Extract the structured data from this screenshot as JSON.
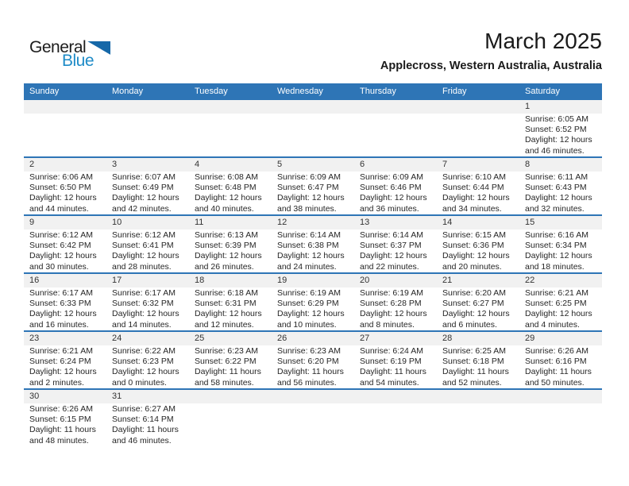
{
  "logo": {
    "part1": "General",
    "part2": "Blue"
  },
  "title": "March 2025",
  "subtitle": "Applecross, Western Australia, Australia",
  "weekdays": [
    "Sunday",
    "Monday",
    "Tuesday",
    "Wednesday",
    "Thursday",
    "Friday",
    "Saturday"
  ],
  "colors": {
    "header_bg": "#2E75B6",
    "separator": "#2E75B6",
    "band_bg": "#F1F1F1",
    "logo_triangle": "#1668A8",
    "logo_text_blue": "#1E8BC7"
  },
  "weeks": [
    [
      null,
      null,
      null,
      null,
      null,
      null,
      {
        "day": "1",
        "sunrise": "Sunrise: 6:05 AM",
        "sunset": "Sunset: 6:52 PM",
        "daylight1": "Daylight: 12 hours",
        "daylight2": "and 46 minutes."
      }
    ],
    [
      {
        "day": "2",
        "sunrise": "Sunrise: 6:06 AM",
        "sunset": "Sunset: 6:50 PM",
        "daylight1": "Daylight: 12 hours",
        "daylight2": "and 44 minutes."
      },
      {
        "day": "3",
        "sunrise": "Sunrise: 6:07 AM",
        "sunset": "Sunset: 6:49 PM",
        "daylight1": "Daylight: 12 hours",
        "daylight2": "and 42 minutes."
      },
      {
        "day": "4",
        "sunrise": "Sunrise: 6:08 AM",
        "sunset": "Sunset: 6:48 PM",
        "daylight1": "Daylight: 12 hours",
        "daylight2": "and 40 minutes."
      },
      {
        "day": "5",
        "sunrise": "Sunrise: 6:09 AM",
        "sunset": "Sunset: 6:47 PM",
        "daylight1": "Daylight: 12 hours",
        "daylight2": "and 38 minutes."
      },
      {
        "day": "6",
        "sunrise": "Sunrise: 6:09 AM",
        "sunset": "Sunset: 6:46 PM",
        "daylight1": "Daylight: 12 hours",
        "daylight2": "and 36 minutes."
      },
      {
        "day": "7",
        "sunrise": "Sunrise: 6:10 AM",
        "sunset": "Sunset: 6:44 PM",
        "daylight1": "Daylight: 12 hours",
        "daylight2": "and 34 minutes."
      },
      {
        "day": "8",
        "sunrise": "Sunrise: 6:11 AM",
        "sunset": "Sunset: 6:43 PM",
        "daylight1": "Daylight: 12 hours",
        "daylight2": "and 32 minutes."
      }
    ],
    [
      {
        "day": "9",
        "sunrise": "Sunrise: 6:12 AM",
        "sunset": "Sunset: 6:42 PM",
        "daylight1": "Daylight: 12 hours",
        "daylight2": "and 30 minutes."
      },
      {
        "day": "10",
        "sunrise": "Sunrise: 6:12 AM",
        "sunset": "Sunset: 6:41 PM",
        "daylight1": "Daylight: 12 hours",
        "daylight2": "and 28 minutes."
      },
      {
        "day": "11",
        "sunrise": "Sunrise: 6:13 AM",
        "sunset": "Sunset: 6:39 PM",
        "daylight1": "Daylight: 12 hours",
        "daylight2": "and 26 minutes."
      },
      {
        "day": "12",
        "sunrise": "Sunrise: 6:14 AM",
        "sunset": "Sunset: 6:38 PM",
        "daylight1": "Daylight: 12 hours",
        "daylight2": "and 24 minutes."
      },
      {
        "day": "13",
        "sunrise": "Sunrise: 6:14 AM",
        "sunset": "Sunset: 6:37 PM",
        "daylight1": "Daylight: 12 hours",
        "daylight2": "and 22 minutes."
      },
      {
        "day": "14",
        "sunrise": "Sunrise: 6:15 AM",
        "sunset": "Sunset: 6:36 PM",
        "daylight1": "Daylight: 12 hours",
        "daylight2": "and 20 minutes."
      },
      {
        "day": "15",
        "sunrise": "Sunrise: 6:16 AM",
        "sunset": "Sunset: 6:34 PM",
        "daylight1": "Daylight: 12 hours",
        "daylight2": "and 18 minutes."
      }
    ],
    [
      {
        "day": "16",
        "sunrise": "Sunrise: 6:17 AM",
        "sunset": "Sunset: 6:33 PM",
        "daylight1": "Daylight: 12 hours",
        "daylight2": "and 16 minutes."
      },
      {
        "day": "17",
        "sunrise": "Sunrise: 6:17 AM",
        "sunset": "Sunset: 6:32 PM",
        "daylight1": "Daylight: 12 hours",
        "daylight2": "and 14 minutes."
      },
      {
        "day": "18",
        "sunrise": "Sunrise: 6:18 AM",
        "sunset": "Sunset: 6:31 PM",
        "daylight1": "Daylight: 12 hours",
        "daylight2": "and 12 minutes."
      },
      {
        "day": "19",
        "sunrise": "Sunrise: 6:19 AM",
        "sunset": "Sunset: 6:29 PM",
        "daylight1": "Daylight: 12 hours",
        "daylight2": "and 10 minutes."
      },
      {
        "day": "20",
        "sunrise": "Sunrise: 6:19 AM",
        "sunset": "Sunset: 6:28 PM",
        "daylight1": "Daylight: 12 hours",
        "daylight2": "and 8 minutes."
      },
      {
        "day": "21",
        "sunrise": "Sunrise: 6:20 AM",
        "sunset": "Sunset: 6:27 PM",
        "daylight1": "Daylight: 12 hours",
        "daylight2": "and 6 minutes."
      },
      {
        "day": "22",
        "sunrise": "Sunrise: 6:21 AM",
        "sunset": "Sunset: 6:25 PM",
        "daylight1": "Daylight: 12 hours",
        "daylight2": "and 4 minutes."
      }
    ],
    [
      {
        "day": "23",
        "sunrise": "Sunrise: 6:21 AM",
        "sunset": "Sunset: 6:24 PM",
        "daylight1": "Daylight: 12 hours",
        "daylight2": "and 2 minutes."
      },
      {
        "day": "24",
        "sunrise": "Sunrise: 6:22 AM",
        "sunset": "Sunset: 6:23 PM",
        "daylight1": "Daylight: 12 hours",
        "daylight2": "and 0 minutes."
      },
      {
        "day": "25",
        "sunrise": "Sunrise: 6:23 AM",
        "sunset": "Sunset: 6:22 PM",
        "daylight1": "Daylight: 11 hours",
        "daylight2": "and 58 minutes."
      },
      {
        "day": "26",
        "sunrise": "Sunrise: 6:23 AM",
        "sunset": "Sunset: 6:20 PM",
        "daylight1": "Daylight: 11 hours",
        "daylight2": "and 56 minutes."
      },
      {
        "day": "27",
        "sunrise": "Sunrise: 6:24 AM",
        "sunset": "Sunset: 6:19 PM",
        "daylight1": "Daylight: 11 hours",
        "daylight2": "and 54 minutes."
      },
      {
        "day": "28",
        "sunrise": "Sunrise: 6:25 AM",
        "sunset": "Sunset: 6:18 PM",
        "daylight1": "Daylight: 11 hours",
        "daylight2": "and 52 minutes."
      },
      {
        "day": "29",
        "sunrise": "Sunrise: 6:26 AM",
        "sunset": "Sunset: 6:16 PM",
        "daylight1": "Daylight: 11 hours",
        "daylight2": "and 50 minutes."
      }
    ],
    [
      {
        "day": "30",
        "sunrise": "Sunrise: 6:26 AM",
        "sunset": "Sunset: 6:15 PM",
        "daylight1": "Daylight: 11 hours",
        "daylight2": "and 48 minutes."
      },
      {
        "day": "31",
        "sunrise": "Sunrise: 6:27 AM",
        "sunset": "Sunset: 6:14 PM",
        "daylight1": "Daylight: 11 hours",
        "daylight2": "and 46 minutes."
      },
      null,
      null,
      null,
      null,
      null
    ]
  ]
}
